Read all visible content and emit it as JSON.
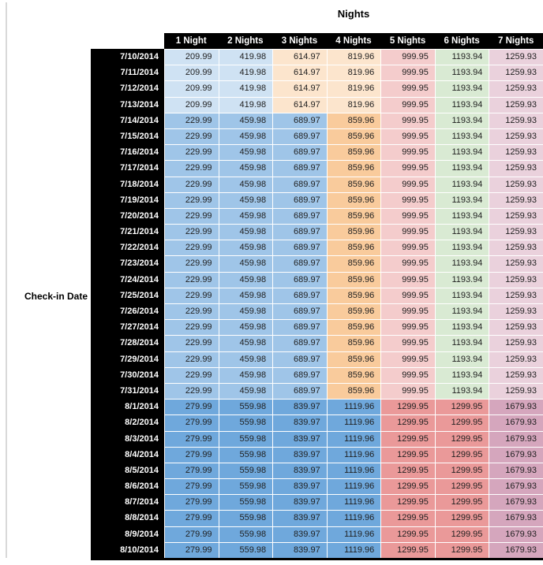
{
  "title": "Nights",
  "row_axis_label": "Check-in Date",
  "chart_data": {
    "type": "table",
    "title": "Nights",
    "row_axis_label": "Check-in Date",
    "columns": [
      "1 Night",
      "2 Nights",
      "3 Nights",
      "4 Nights",
      "5 Nights",
      "6 Nights",
      "7 Nights"
    ],
    "colors": {
      "header_bg": "#000000",
      "header_text": "#ffffff",
      "date_bg": "#000000",
      "date_text": "#ffffff",
      "value_text": "#1f1f1f",
      "gridline": "#ffffff",
      "sheet_edge_line": "#d9d9d9"
    },
    "bands": [
      {
        "name": "early-july",
        "cell_colors": [
          "#CFE2F3",
          "#CFE2F3",
          "#FCE5CD",
          "#FCE5CD",
          "#F4CCCC",
          "#D9EAD3",
          "#EAD1DC"
        ]
      },
      {
        "name": "mid-july",
        "cell_colors": [
          "#9FC5E8",
          "#9FC5E8",
          "#9FC5E8",
          "#F9CB9C",
          "#F4CCCC",
          "#D9EAD3",
          "#EAD1DC"
        ]
      },
      {
        "name": "august",
        "cell_colors": [
          "#6FA8DC",
          "#6FA8DC",
          "#6FA8DC",
          "#6FA8DC",
          "#EA9999",
          "#EA9999",
          "#D5A6BD"
        ]
      }
    ],
    "rows": [
      {
        "date": "7/10/2014",
        "band": 0,
        "values": [
          "209.99",
          "419.98",
          "614.97",
          "819.96",
          "999.95",
          "1193.94",
          "1259.93"
        ]
      },
      {
        "date": "7/11/2014",
        "band": 0,
        "values": [
          "209.99",
          "419.98",
          "614.97",
          "819.96",
          "999.95",
          "1193.94",
          "1259.93"
        ]
      },
      {
        "date": "7/12/2014",
        "band": 0,
        "values": [
          "209.99",
          "419.98",
          "614.97",
          "819.96",
          "999.95",
          "1193.94",
          "1259.93"
        ]
      },
      {
        "date": "7/13/2014",
        "band": 0,
        "values": [
          "209.99",
          "419.98",
          "614.97",
          "819.96",
          "999.95",
          "1193.94",
          "1259.93"
        ]
      },
      {
        "date": "7/14/2014",
        "band": 1,
        "values": [
          "229.99",
          "459.98",
          "689.97",
          "859.96",
          "999.95",
          "1193.94",
          "1259.93"
        ]
      },
      {
        "date": "7/15/2014",
        "band": 1,
        "values": [
          "229.99",
          "459.98",
          "689.97",
          "859.96",
          "999.95",
          "1193.94",
          "1259.93"
        ]
      },
      {
        "date": "7/16/2014",
        "band": 1,
        "values": [
          "229.99",
          "459.98",
          "689.97",
          "859.96",
          "999.95",
          "1193.94",
          "1259.93"
        ]
      },
      {
        "date": "7/17/2014",
        "band": 1,
        "values": [
          "229.99",
          "459.98",
          "689.97",
          "859.96",
          "999.95",
          "1193.94",
          "1259.93"
        ]
      },
      {
        "date": "7/18/2014",
        "band": 1,
        "values": [
          "229.99",
          "459.98",
          "689.97",
          "859.96",
          "999.95",
          "1193.94",
          "1259.93"
        ]
      },
      {
        "date": "7/19/2014",
        "band": 1,
        "values": [
          "229.99",
          "459.98",
          "689.97",
          "859.96",
          "999.95",
          "1193.94",
          "1259.93"
        ]
      },
      {
        "date": "7/20/2014",
        "band": 1,
        "values": [
          "229.99",
          "459.98",
          "689.97",
          "859.96",
          "999.95",
          "1193.94",
          "1259.93"
        ]
      },
      {
        "date": "7/21/2014",
        "band": 1,
        "values": [
          "229.99",
          "459.98",
          "689.97",
          "859.96",
          "999.95",
          "1193.94",
          "1259.93"
        ]
      },
      {
        "date": "7/22/2014",
        "band": 1,
        "values": [
          "229.99",
          "459.98",
          "689.97",
          "859.96",
          "999.95",
          "1193.94",
          "1259.93"
        ]
      },
      {
        "date": "7/23/2014",
        "band": 1,
        "values": [
          "229.99",
          "459.98",
          "689.97",
          "859.96",
          "999.95",
          "1193.94",
          "1259.93"
        ]
      },
      {
        "date": "7/24/2014",
        "band": 1,
        "values": [
          "229.99",
          "459.98",
          "689.97",
          "859.96",
          "999.95",
          "1193.94",
          "1259.93"
        ]
      },
      {
        "date": "7/25/2014",
        "band": 1,
        "values": [
          "229.99",
          "459.98",
          "689.97",
          "859.96",
          "999.95",
          "1193.94",
          "1259.93"
        ]
      },
      {
        "date": "7/26/2014",
        "band": 1,
        "values": [
          "229.99",
          "459.98",
          "689.97",
          "859.96",
          "999.95",
          "1193.94",
          "1259.93"
        ]
      },
      {
        "date": "7/27/2014",
        "band": 1,
        "values": [
          "229.99",
          "459.98",
          "689.97",
          "859.96",
          "999.95",
          "1193.94",
          "1259.93"
        ]
      },
      {
        "date": "7/28/2014",
        "band": 1,
        "values": [
          "229.99",
          "459.98",
          "689.97",
          "859.96",
          "999.95",
          "1193.94",
          "1259.93"
        ]
      },
      {
        "date": "7/29/2014",
        "band": 1,
        "values": [
          "229.99",
          "459.98",
          "689.97",
          "859.96",
          "999.95",
          "1193.94",
          "1259.93"
        ]
      },
      {
        "date": "7/30/2014",
        "band": 1,
        "values": [
          "229.99",
          "459.98",
          "689.97",
          "859.96",
          "999.95",
          "1193.94",
          "1259.93"
        ]
      },
      {
        "date": "7/31/2014",
        "band": 1,
        "values": [
          "229.99",
          "459.98",
          "689.97",
          "859.96",
          "999.95",
          "1193.94",
          "1259.93"
        ]
      },
      {
        "date": "8/1/2014",
        "band": 2,
        "values": [
          "279.99",
          "559.98",
          "839.97",
          "1119.96",
          "1299.95",
          "1299.95",
          "1679.93"
        ]
      },
      {
        "date": "8/2/2014",
        "band": 2,
        "values": [
          "279.99",
          "559.98",
          "839.97",
          "1119.96",
          "1299.95",
          "1299.95",
          "1679.93"
        ]
      },
      {
        "date": "8/3/2014",
        "band": 2,
        "values": [
          "279.99",
          "559.98",
          "839.97",
          "1119.96",
          "1299.95",
          "1299.95",
          "1679.93"
        ]
      },
      {
        "date": "8/4/2014",
        "band": 2,
        "values": [
          "279.99",
          "559.98",
          "839.97",
          "1119.96",
          "1299.95",
          "1299.95",
          "1679.93"
        ]
      },
      {
        "date": "8/5/2014",
        "band": 2,
        "values": [
          "279.99",
          "559.98",
          "839.97",
          "1119.96",
          "1299.95",
          "1299.95",
          "1679.93"
        ]
      },
      {
        "date": "8/6/2014",
        "band": 2,
        "values": [
          "279.99",
          "559.98",
          "839.97",
          "1119.96",
          "1299.95",
          "1299.95",
          "1679.93"
        ]
      },
      {
        "date": "8/7/2014",
        "band": 2,
        "values": [
          "279.99",
          "559.98",
          "839.97",
          "1119.96",
          "1299.95",
          "1299.95",
          "1679.93"
        ]
      },
      {
        "date": "8/8/2014",
        "band": 2,
        "values": [
          "279.99",
          "559.98",
          "839.97",
          "1119.96",
          "1299.95",
          "1299.95",
          "1679.93"
        ]
      },
      {
        "date": "8/9/2014",
        "band": 2,
        "values": [
          "279.99",
          "559.98",
          "839.97",
          "1119.96",
          "1299.95",
          "1299.95",
          "1679.93"
        ]
      },
      {
        "date": "8/10/2014",
        "band": 2,
        "values": [
          "279.99",
          "559.98",
          "839.97",
          "1119.96",
          "1299.95",
          "1299.95",
          "1679.93"
        ]
      }
    ]
  }
}
